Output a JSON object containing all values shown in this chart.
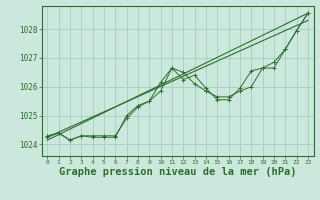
{
  "bg_color": "#cce8dd",
  "grid_color": "#99ccbb",
  "line_color": "#2d6e2d",
  "marker_color": "#2d6e2d",
  "xlabel": "Graphe pression niveau de la mer (hPa)",
  "xlabel_fontsize": 7.5,
  "ylim": [
    1023.6,
    1028.8
  ],
  "xlim": [
    -0.5,
    23.5
  ],
  "yticks": [
    1024,
    1025,
    1026,
    1027,
    1028
  ],
  "xticks": [
    0,
    1,
    2,
    3,
    4,
    5,
    6,
    7,
    8,
    9,
    10,
    11,
    12,
    13,
    14,
    15,
    16,
    17,
    18,
    19,
    20,
    21,
    22,
    23
  ],
  "series1": [
    1024.3,
    1024.4,
    1024.15,
    1024.3,
    1024.3,
    1024.3,
    1024.3,
    1024.9,
    1025.3,
    1025.5,
    1025.85,
    1026.65,
    1026.5,
    1026.1,
    1025.85,
    1025.65,
    1025.65,
    1025.85,
    1026.0,
    1026.65,
    1026.85,
    1027.3,
    1027.95,
    1028.55
  ],
  "series2": [
    1024.25,
    1024.4,
    1024.15,
    1024.3,
    1024.25,
    1024.25,
    1024.25,
    1025.0,
    1025.35,
    1025.5,
    1026.15,
    1026.65,
    1026.25,
    1026.4,
    1025.95,
    1025.55,
    1025.55,
    1025.95,
    1026.55,
    1026.65,
    1026.65,
    1027.3,
    1027.95,
    1028.55
  ],
  "trend1_x": [
    0,
    23
  ],
  "trend1_y": [
    1024.15,
    1028.55
  ],
  "trend2_x": [
    0,
    23
  ],
  "trend2_y": [
    1024.25,
    1028.3
  ]
}
